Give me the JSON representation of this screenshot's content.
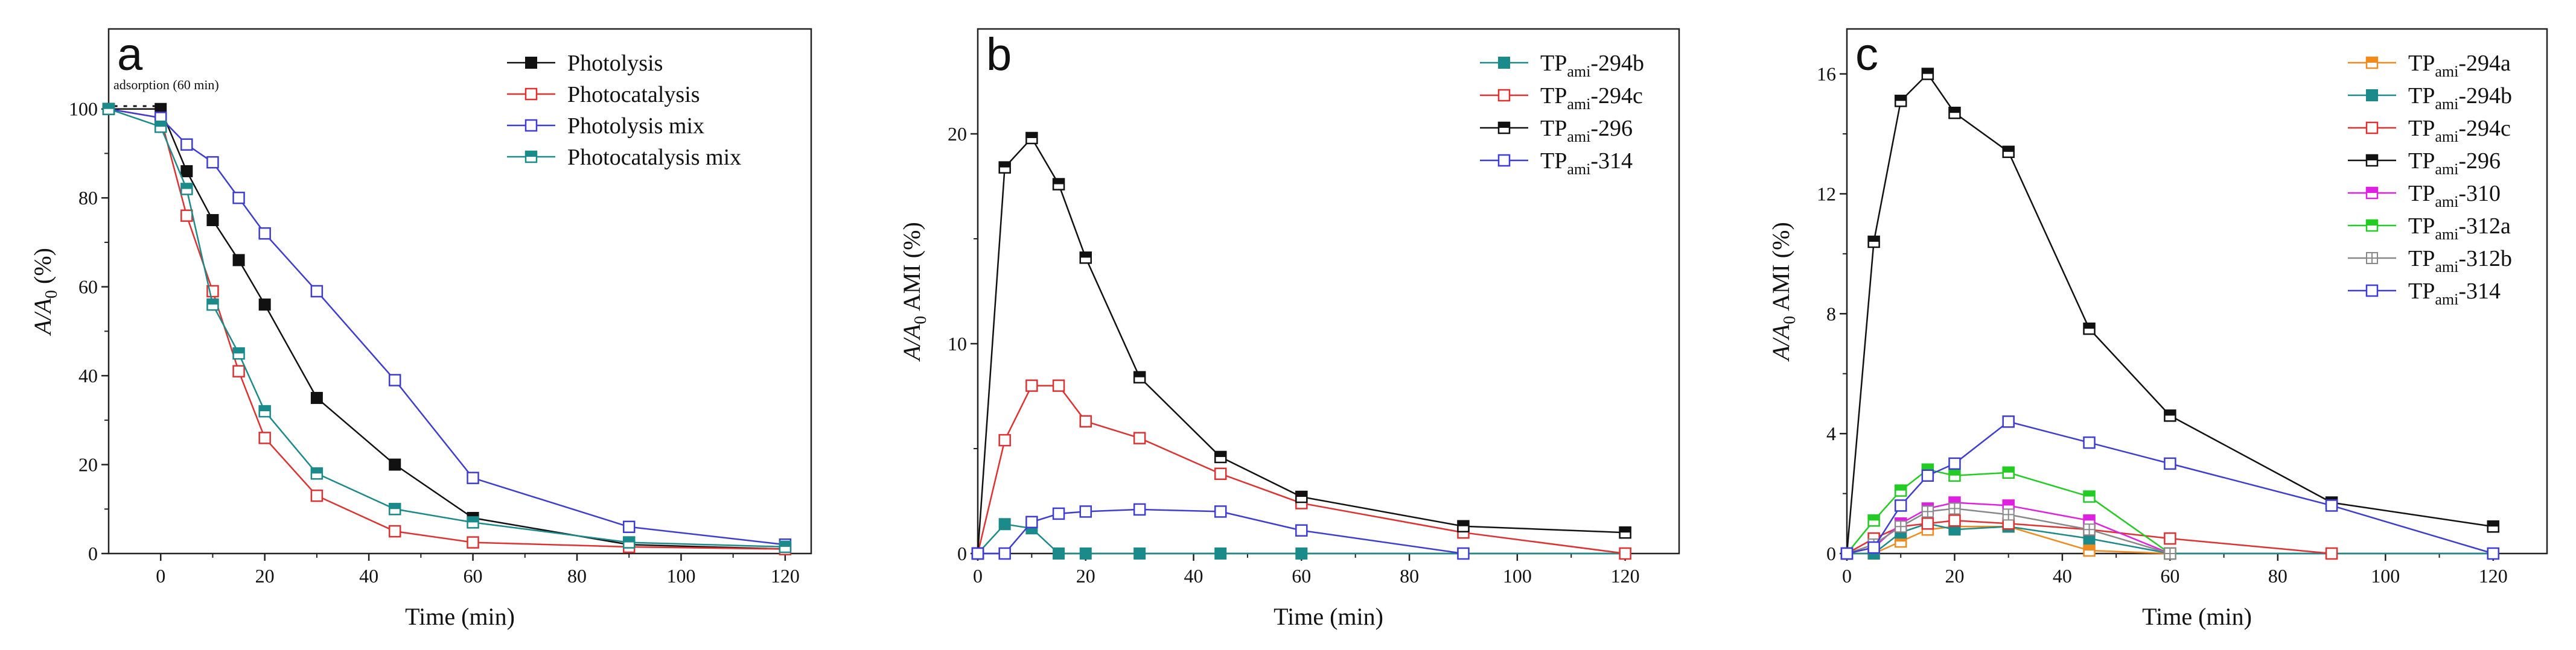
{
  "chart_data": [
    {
      "type": "line",
      "panel_label": "a",
      "xlabel": "Time (min)",
      "ylabel_parts": {
        "A": "A",
        "slash": "/",
        "A0": "A",
        "sub0": "0",
        "unit": " (%)"
      },
      "xlim": [
        -10,
        125
      ],
      "ylim": [
        0,
        118
      ],
      "xticks": [
        0,
        20,
        40,
        60,
        80,
        100,
        120
      ],
      "yticks": [
        0,
        20,
        40,
        60,
        80,
        100
      ],
      "annotation": "adsorption (60 min)",
      "legend_position": "top-right",
      "series": [
        {
          "name": "Photolysis",
          "color": "#111111",
          "marker": "filled",
          "x": [
            -10,
            0,
            5,
            10,
            15,
            20,
            30,
            45,
            60,
            90,
            120
          ],
          "y": [
            100,
            100,
            86,
            75,
            66,
            56,
            35,
            20,
            8,
            2,
            1
          ]
        },
        {
          "name": "Photocatalysis",
          "color": "#e03030",
          "marker": "open",
          "x": [
            -10,
            0,
            5,
            10,
            15,
            20,
            30,
            45,
            60,
            90,
            120
          ],
          "y": [
            100,
            98,
            76,
            59,
            41,
            26,
            13,
            5,
            2.5,
            1.5,
            1
          ]
        },
        {
          "name": "Photolysis mix",
          "color": "#3d3dd6",
          "marker": "open",
          "x": [
            -10,
            0,
            5,
            10,
            15,
            20,
            30,
            45,
            60,
            90,
            120
          ],
          "y": [
            100,
            98,
            92,
            88,
            80,
            72,
            59,
            39,
            17,
            6,
            2
          ]
        },
        {
          "name": "Photocatalysis mix",
          "color": "#1a8a8a",
          "marker": "half",
          "x": [
            -10,
            0,
            5,
            10,
            15,
            20,
            30,
            45,
            60,
            90,
            120
          ],
          "y": [
            100,
            96,
            82,
            56,
            45,
            32,
            18,
            10,
            7,
            2.5,
            1.5
          ]
        }
      ]
    },
    {
      "type": "line",
      "panel_label": "b",
      "xlabel": "Time (min)",
      "ylabel_parts": {
        "A": "A",
        "slash": "/",
        "A0": "A",
        "sub0": "0",
        "unit": " AMI (%)"
      },
      "xlim": [
        0,
        130
      ],
      "ylim": [
        0,
        25
      ],
      "xticks": [
        0,
        20,
        40,
        60,
        80,
        100,
        120
      ],
      "yticks": [
        0,
        10,
        20
      ],
      "legend_position": "top-right",
      "series": [
        {
          "name": "TP",
          "sub": "ami",
          "suffix": "-294b",
          "color": "#1a8a8a",
          "marker": "filled",
          "x": [
            0,
            5,
            10,
            15,
            20,
            30,
            45,
            60,
            90,
            120
          ],
          "y": [
            0,
            1.4,
            1.2,
            0,
            0,
            0,
            0,
            0,
            0,
            0
          ]
        },
        {
          "name": "TP",
          "sub": "ami",
          "suffix": "-294c",
          "color": "#e03030",
          "marker": "open",
          "x": [
            0,
            5,
            10,
            15,
            20,
            30,
            45,
            60,
            90,
            120
          ],
          "y": [
            0,
            5.4,
            8.0,
            8.0,
            6.3,
            5.5,
            3.8,
            2.4,
            1.0,
            0
          ]
        },
        {
          "name": "TP",
          "sub": "ami",
          "suffix": "-296",
          "color": "#111111",
          "marker": "half",
          "x": [
            0,
            5,
            10,
            15,
            20,
            30,
            45,
            60,
            90,
            120
          ],
          "y": [
            0,
            18.4,
            19.8,
            17.6,
            14.1,
            8.4,
            4.6,
            2.7,
            1.3,
            1.0
          ]
        },
        {
          "name": "TP",
          "sub": "ami",
          "suffix": "-314",
          "color": "#3d3dd6",
          "marker": "open",
          "x": [
            0,
            5,
            10,
            15,
            20,
            30,
            45,
            60,
            90
          ],
          "y": [
            0,
            0,
            1.5,
            1.9,
            2.0,
            2.1,
            2.0,
            1.1,
            0
          ]
        }
      ]
    },
    {
      "type": "line",
      "panel_label": "c",
      "xlabel": "Time (min)",
      "ylabel_parts": {
        "A": "A",
        "slash": "/",
        "A0": "A",
        "sub0": "0",
        "unit": " AMI (%)"
      },
      "xlim": [
        0,
        130
      ],
      "ylim": [
        0,
        17.5
      ],
      "xticks": [
        0,
        20,
        40,
        60,
        80,
        100,
        120
      ],
      "yticks": [
        0,
        4,
        8,
        12,
        16
      ],
      "legend_position": "top-right",
      "series": [
        {
          "name": "TP",
          "sub": "ami",
          "suffix": "-294a",
          "color": "#f08a1c",
          "marker": "half",
          "x": [
            0,
            5,
            10,
            15,
            20,
            30,
            45,
            60
          ],
          "y": [
            0,
            0,
            0.4,
            0.8,
            0.9,
            0.9,
            0.1,
            0
          ]
        },
        {
          "name": "TP",
          "sub": "ami",
          "suffix": "-294b",
          "color": "#1a8a8a",
          "marker": "filled",
          "x": [
            0,
            5,
            10,
            15,
            20,
            30,
            45,
            60,
            90,
            120
          ],
          "y": [
            0,
            0,
            0.7,
            1.0,
            0.8,
            0.9,
            0.5,
            0,
            0,
            0
          ]
        },
        {
          "name": "TP",
          "sub": "ami",
          "suffix": "-294c",
          "color": "#e03030",
          "marker": "open",
          "x": [
            0,
            5,
            10,
            15,
            20,
            30,
            45,
            60,
            90
          ],
          "y": [
            0,
            0.5,
            0.9,
            1.0,
            1.1,
            1.0,
            0.8,
            0.5,
            0
          ]
        },
        {
          "name": "TP",
          "sub": "ami",
          "suffix": "-296",
          "color": "#111111",
          "marker": "half",
          "x": [
            0,
            5,
            10,
            15,
            20,
            30,
            45,
            60,
            90,
            120
          ],
          "y": [
            0,
            10.4,
            15.1,
            16.0,
            14.7,
            13.4,
            7.5,
            4.6,
            1.7,
            0.9
          ]
        },
        {
          "name": "TP",
          "sub": "ami",
          "suffix": "-310",
          "color": "#e020e0",
          "marker": "half",
          "x": [
            0,
            5,
            10,
            15,
            20,
            30,
            45,
            60
          ],
          "y": [
            0,
            0.2,
            1.0,
            1.5,
            1.7,
            1.6,
            1.1,
            0
          ]
        },
        {
          "name": "TP",
          "sub": "ami",
          "suffix": "-312a",
          "color": "#22cc22",
          "marker": "half",
          "x": [
            0,
            5,
            10,
            15,
            20,
            30,
            45,
            60
          ],
          "y": [
            0,
            1.1,
            2.1,
            2.8,
            2.6,
            2.7,
            1.9,
            0
          ]
        },
        {
          "name": "TP",
          "sub": "ami",
          "suffix": "-312b",
          "color": "#888888",
          "marker": "cross",
          "x": [
            0,
            5,
            10,
            15,
            20,
            30,
            45,
            60
          ],
          "y": [
            0,
            0.3,
            0.9,
            1.4,
            1.5,
            1.3,
            0.8,
            0
          ]
        },
        {
          "name": "TP",
          "sub": "ami",
          "suffix": "-314",
          "color": "#3d3dd6",
          "marker": "open",
          "x": [
            0,
            5,
            10,
            15,
            20,
            30,
            45,
            60,
            90,
            120
          ],
          "y": [
            0,
            0.2,
            1.6,
            2.6,
            3.0,
            4.4,
            3.7,
            3.0,
            1.6,
            0
          ]
        }
      ]
    }
  ]
}
